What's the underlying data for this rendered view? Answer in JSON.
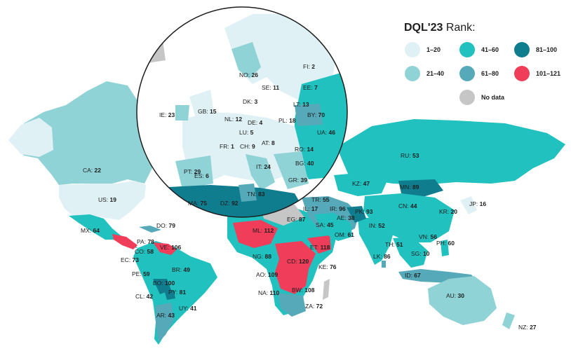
{
  "legend": {
    "title_bold": "DQL'23",
    "title_rest": " Rank:",
    "items": [
      {
        "label": "1–20",
        "color": "#dff1f4"
      },
      {
        "label": "41–60",
        "color": "#21c1bf"
      },
      {
        "label": "81–100",
        "color": "#107d8f"
      },
      {
        "label": "21–40",
        "color": "#8fd3d6"
      },
      {
        "label": "61–80",
        "color": "#55a9b8"
      },
      {
        "label": "101–121",
        "color": "#ef3d5a"
      },
      {
        "label": "No data",
        "color": "#c6c6c6"
      }
    ]
  },
  "countries": {
    "no": {
      "code": "NO:",
      "rank": "26"
    },
    "fi": {
      "code": "FI:",
      "rank": "2"
    },
    "se": {
      "code": "SE:",
      "rank": "11"
    },
    "ee": {
      "code": "EE:",
      "rank": "7"
    },
    "dk": {
      "code": "DK:",
      "rank": "3"
    },
    "lt": {
      "code": "LT:",
      "rank": "13"
    },
    "ie": {
      "code": "IE:",
      "rank": "23"
    },
    "gb": {
      "code": "GB:",
      "rank": "15"
    },
    "by": {
      "code": "BY:",
      "rank": "70"
    },
    "nl": {
      "code": "NL:",
      "rank": "12"
    },
    "de": {
      "code": "DE:",
      "rank": "4"
    },
    "pl": {
      "code": "PL:",
      "rank": "18"
    },
    "lu": {
      "code": "LU:",
      "rank": "5"
    },
    "ua": {
      "code": "UA:",
      "rank": "46"
    },
    "fr": {
      "code": "FR:",
      "rank": "1"
    },
    "ch": {
      "code": "CH:",
      "rank": "9"
    },
    "at": {
      "code": "AT:",
      "rank": "8"
    },
    "ro": {
      "code": "RO:",
      "rank": "14"
    },
    "pt": {
      "code": "PT:",
      "rank": "29"
    },
    "es": {
      "code": "ES:",
      "rank": "6"
    },
    "it": {
      "code": "IT:",
      "rank": "24"
    },
    "bg": {
      "code": "BG:",
      "rank": "40"
    },
    "gr": {
      "code": "GR:",
      "rank": "39"
    },
    "tn": {
      "code": "TN:",
      "rank": "83"
    },
    "ma": {
      "code": "MA:",
      "rank": "75"
    },
    "dz": {
      "code": "DZ:",
      "rank": "92"
    },
    "ru": {
      "code": "RU:",
      "rank": "53"
    },
    "kz": {
      "code": "KZ:",
      "rank": "47"
    },
    "mn": {
      "code": "MN:",
      "rank": "89"
    },
    "tr": {
      "code": "TR:",
      "rank": "55"
    },
    "cn": {
      "code": "CN:",
      "rank": "44"
    },
    "kr": {
      "code": "KR:",
      "rank": "20"
    },
    "jp": {
      "code": "JP:",
      "rank": "16"
    },
    "il": {
      "code": "IL:",
      "rank": "17"
    },
    "ir": {
      "code": "IR:",
      "rank": "96"
    },
    "pk": {
      "code": "PK:",
      "rank": "93"
    },
    "eg": {
      "code": "EG:",
      "rank": "87"
    },
    "ae": {
      "code": "AE:",
      "rank": "38"
    },
    "sa": {
      "code": "SA:",
      "rank": "45"
    },
    "in": {
      "code": "IN:",
      "rank": "52"
    },
    "om": {
      "code": "OM:",
      "rank": "61"
    },
    "ml": {
      "code": "ML:",
      "rank": "112"
    },
    "vn": {
      "code": "VN:",
      "rank": "56"
    },
    "ph": {
      "code": "PH:",
      "rank": "60"
    },
    "th": {
      "code": "TH:",
      "rank": "51"
    },
    "sg": {
      "code": "SG:",
      "rank": "10"
    },
    "ng": {
      "code": "NG:",
      "rank": "88"
    },
    "et": {
      "code": "ET:",
      "rank": "118"
    },
    "lk": {
      "code": "LK:",
      "rank": "86"
    },
    "cd": {
      "code": "CD:",
      "rank": "120"
    },
    "ke": {
      "code": "KE:",
      "rank": "76"
    },
    "id": {
      "code": "ID:",
      "rank": "67"
    },
    "ao": {
      "code": "AO:",
      "rank": "109"
    },
    "bw": {
      "code": "BW:",
      "rank": "108"
    },
    "na": {
      "code": "NA:",
      "rank": "110"
    },
    "za": {
      "code": "ZA:",
      "rank": "72"
    },
    "au": {
      "code": "AU:",
      "rank": "30"
    },
    "nz": {
      "code": "NZ:",
      "rank": "27"
    },
    "ca": {
      "code": "CA:",
      "rank": "22"
    },
    "us": {
      "code": "US:",
      "rank": "19"
    },
    "mx": {
      "code": "MX:",
      "rank": "64"
    },
    "do": {
      "code": "DO:",
      "rank": "79"
    },
    "pa": {
      "code": "PA:",
      "rank": "78"
    },
    "ve": {
      "code": "VE:",
      "rank": "106"
    },
    "co": {
      "code": "CO:",
      "rank": "58"
    },
    "ec": {
      "code": "EC:",
      "rank": "73"
    },
    "br": {
      "code": "BR:",
      "rank": "49"
    },
    "pe": {
      "code": "PE:",
      "rank": "59"
    },
    "bo": {
      "code": "BO:",
      "rank": "100"
    },
    "py": {
      "code": "PY:",
      "rank": "81"
    },
    "cl": {
      "code": "CL:",
      "rank": "42"
    },
    "uy": {
      "code": "UY:",
      "rank": "41"
    },
    "ar": {
      "code": "AR:",
      "rank": "43"
    }
  }
}
